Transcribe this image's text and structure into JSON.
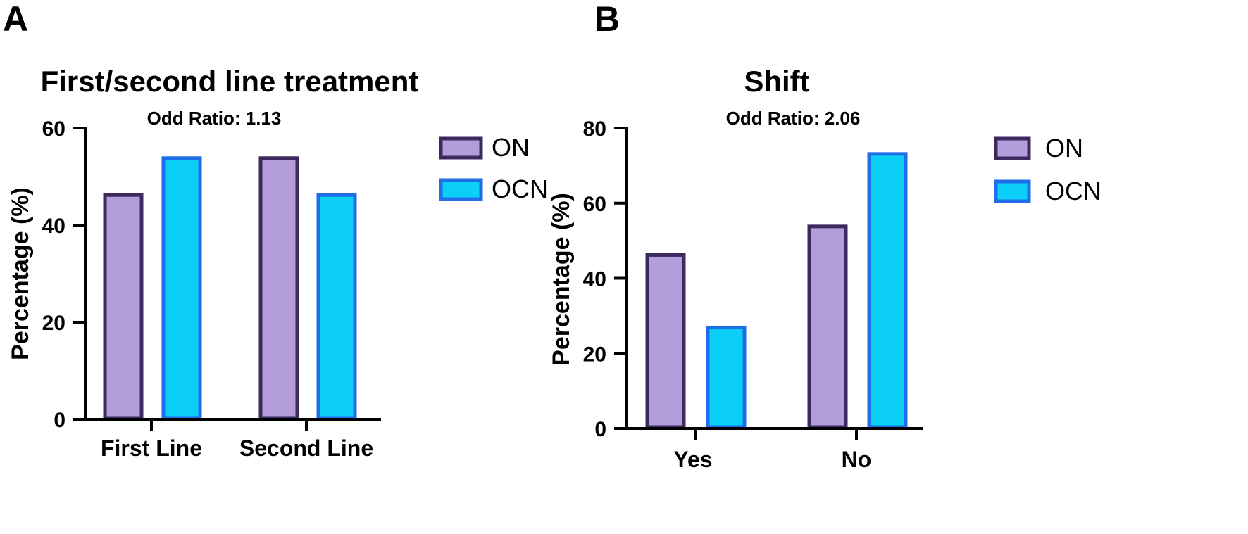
{
  "colors": {
    "on_fill": "#b39ddb",
    "on_stroke": "#3c2a5f",
    "ocn_fill": "#0ccff8",
    "ocn_stroke": "#1f6ee8",
    "axis": "#000000"
  },
  "chart_data": [
    {
      "panel": "A",
      "type": "bar",
      "title": "First/second line treatment",
      "subtitle": "Odd Ratio: 1.13",
      "xlabel": "",
      "ylabel": "Percentage (%)",
      "ylim": [
        0,
        60
      ],
      "yticks": [
        0,
        20,
        40,
        60
      ],
      "categories": [
        "First Line",
        "Second Line"
      ],
      "series": [
        {
          "name": "ON",
          "values": [
            46.2,
            53.8
          ]
        },
        {
          "name": "OCN",
          "values": [
            53.8,
            46.2
          ]
        }
      ],
      "legend": [
        "ON",
        "OCN"
      ],
      "legend_position": "right"
    },
    {
      "panel": "B",
      "type": "bar",
      "title": "Shift",
      "subtitle": "Odd Ratio: 2.06",
      "xlabel": "",
      "ylabel": "Percentage (%)",
      "ylim": [
        0,
        80
      ],
      "yticks": [
        0,
        20,
        40,
        60,
        80
      ],
      "categories": [
        "Yes",
        "No"
      ],
      "series": [
        {
          "name": "ON",
          "values": [
            46.2,
            53.8
          ]
        },
        {
          "name": "OCN",
          "values": [
            26.9,
            73.1
          ]
        }
      ],
      "legend": [
        "ON",
        "OCN"
      ],
      "legend_position": "right"
    }
  ]
}
